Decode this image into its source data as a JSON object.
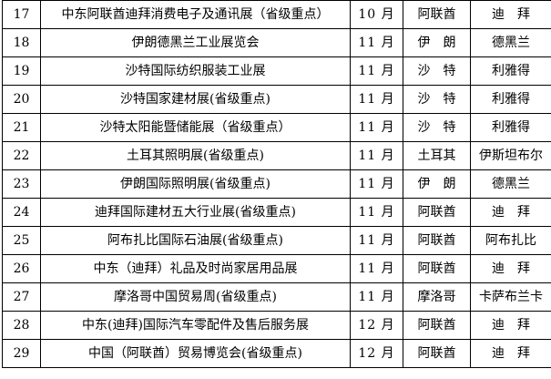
{
  "colors": {
    "background": "#ffffff",
    "border": "#000000",
    "text": "#000000"
  },
  "table": {
    "description_fields": [
      "no",
      "name",
      "month",
      "country",
      "city"
    ],
    "rows": [
      {
        "no": "17",
        "name": "中东阿联酋迪拜消费电子及通讯展（省级重点）",
        "month": "10 月",
        "country": "阿联酋",
        "city": "迪　拜"
      },
      {
        "no": "18",
        "name": "伊朗德黑兰工业展览会",
        "month": "11 月",
        "country": "伊　朗",
        "city": "德黑兰"
      },
      {
        "no": "19",
        "name": "沙特国际纺织服装工业展",
        "month": "11 月",
        "country": "沙　特",
        "city": "利雅得"
      },
      {
        "no": "20",
        "name": "沙特国家建材展(省级重点)",
        "month": "11 月",
        "country": "沙　特",
        "city": "利雅得"
      },
      {
        "no": "21",
        "name": "沙特太阳能暨储能展（省级重点）",
        "month": "11 月",
        "country": "沙　特",
        "city": "利雅得"
      },
      {
        "no": "22",
        "name": "土耳其照明展(省级重点)",
        "month": "11 月",
        "country": "土耳其",
        "city": "伊斯坦布尔"
      },
      {
        "no": "23",
        "name": "伊朗国际照明展(省级重点)",
        "month": "11 月",
        "country": "伊　朗",
        "city": "德黑兰"
      },
      {
        "no": "24",
        "name": "迪拜国际建材五大行业展(省级重点)",
        "month": "11 月",
        "country": "阿联酋",
        "city": "迪　拜"
      },
      {
        "no": "25",
        "name": "阿布扎比国际石油展(省级重点)",
        "month": "11 月",
        "country": "阿联酋",
        "city": "阿布扎比"
      },
      {
        "no": "26",
        "name": "中东（迪拜）礼品及时尚家居用品展",
        "month": "11 月",
        "country": "阿联酋",
        "city": "迪　拜"
      },
      {
        "no": "27",
        "name": "摩洛哥中国贸易周(省级重点)",
        "month": "11 月",
        "country": "摩洛哥",
        "city": "卡萨布兰卡"
      },
      {
        "no": "28",
        "name": "中东(迪拜)国际汽车零配件及售后服务展",
        "month": "12 月",
        "country": "阿联酋",
        "city": "迪　拜"
      },
      {
        "no": "29",
        "name": "中国（阿联酋）贸易博览会(省级重点)",
        "month": "12 月",
        "country": "阿联酋",
        "city": "迪　拜"
      }
    ]
  }
}
